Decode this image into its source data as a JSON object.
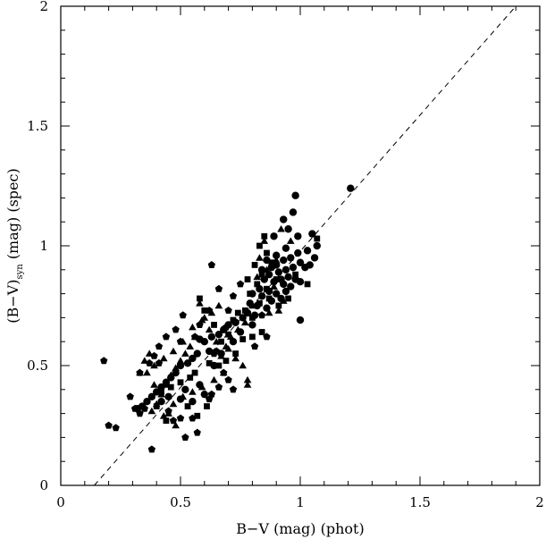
{
  "chart_data": {
    "type": "scatter",
    "title": "",
    "xlabel": "B−V (mag) (phot)",
    "ylabel_main": "(B−V)",
    "ylabel_sub": "syn",
    "ylabel_rest": " (mag) (spec)",
    "xlim": [
      0,
      2
    ],
    "ylim": [
      0,
      2
    ],
    "xticks": [
      "0",
      "0.5",
      "1",
      "1.5",
      "2"
    ],
    "yticks": [
      "0",
      "0.5",
      "1",
      "1.5",
      "2"
    ],
    "xtick_values": [
      0,
      0.5,
      1,
      1.5,
      2
    ],
    "ytick_values": [
      0,
      0.5,
      1,
      1.5,
      2
    ],
    "grid": false,
    "reference_line": {
      "style": "dashed",
      "x": [
        0.14,
        1.9
      ],
      "y": [
        0,
        2
      ]
    },
    "series": [
      {
        "marker": "circle",
        "points": [
          [
            0.98,
            1.21
          ],
          [
            0.97,
            1.14
          ],
          [
            1.21,
            1.24
          ],
          [
            0.93,
            1.11
          ],
          [
            0.95,
            1.07
          ],
          [
            0.89,
            1.04
          ],
          [
            1.05,
            1.05
          ],
          [
            1.07,
            1.0
          ],
          [
            1.03,
            0.98
          ],
          [
            0.99,
            0.97
          ],
          [
            0.96,
            0.95
          ],
          [
            0.93,
            0.94
          ],
          [
            0.9,
            0.92
          ],
          [
            0.88,
            0.91
          ],
          [
            0.94,
            0.9
          ],
          [
            0.97,
            0.91
          ],
          [
            1.0,
            0.93
          ],
          [
            1.02,
            0.91
          ],
          [
            0.91,
            0.89
          ],
          [
            0.87,
            0.88
          ],
          [
            0.92,
            0.86
          ],
          [
            0.95,
            0.87
          ],
          [
            0.98,
            0.86
          ],
          [
            1.0,
            0.85
          ],
          [
            0.85,
            0.86
          ],
          [
            0.89,
            0.85
          ],
          [
            0.93,
            0.84
          ],
          [
            0.96,
            0.83
          ],
          [
            0.83,
            0.82
          ],
          [
            0.87,
            0.81
          ],
          [
            0.9,
            0.8
          ],
          [
            0.94,
            0.81
          ],
          [
            0.8,
            0.8
          ],
          [
            0.84,
            0.79
          ],
          [
            0.88,
            0.77
          ],
          [
            0.92,
            0.78
          ],
          [
            0.79,
            0.76
          ],
          [
            0.82,
            0.75
          ],
          [
            0.86,
            0.74
          ],
          [
            0.78,
            0.72
          ],
          [
            0.81,
            0.71
          ],
          [
            0.76,
            0.7
          ],
          [
            0.73,
            0.68
          ],
          [
            0.7,
            0.67
          ],
          [
            0.68,
            0.65
          ],
          [
            0.66,
            0.63
          ],
          [
            0.63,
            0.62
          ],
          [
            0.6,
            0.6
          ],
          [
            0.58,
            0.61
          ],
          [
            0.62,
            0.56
          ],
          [
            0.57,
            0.55
          ],
          [
            0.55,
            0.53
          ],
          [
            0.53,
            0.51
          ],
          [
            0.5,
            0.5
          ],
          [
            0.48,
            0.47
          ],
          [
            0.46,
            0.45
          ],
          [
            0.44,
            0.43
          ],
          [
            0.42,
            0.41
          ],
          [
            0.4,
            0.39
          ],
          [
            0.38,
            0.37
          ],
          [
            0.36,
            0.35
          ],
          [
            0.34,
            0.33
          ],
          [
            0.32,
            0.32
          ],
          [
            0.42,
            0.35
          ],
          [
            0.45,
            0.37
          ],
          [
            0.5,
            0.36
          ],
          [
            0.55,
            0.35
          ],
          [
            0.6,
            0.38
          ],
          [
            0.52,
            0.4
          ],
          [
            0.58,
            0.42
          ],
          [
            0.64,
            0.5
          ],
          [
            0.67,
            0.55
          ],
          [
            0.72,
            0.6
          ],
          [
            0.75,
            0.64
          ],
          [
            0.8,
            0.67
          ],
          [
            1.0,
            0.69
          ],
          [
            1.06,
            0.95
          ],
          [
            1.04,
            0.92
          ],
          [
            0.99,
            1.04
          ],
          [
            0.94,
            0.99
          ],
          [
            0.9,
            0.96
          ],
          [
            0.86,
            0.94
          ],
          [
            0.84,
            0.9
          ]
        ]
      },
      {
        "marker": "triangle",
        "points": [
          [
            0.92,
            1.07
          ],
          [
            0.85,
            1.02
          ],
          [
            0.96,
            1.02
          ],
          [
            0.83,
            0.95
          ],
          [
            0.9,
            0.94
          ],
          [
            0.86,
            0.9
          ],
          [
            0.82,
            0.87
          ],
          [
            0.89,
            0.83
          ],
          [
            0.93,
            0.77
          ],
          [
            0.91,
            0.73
          ],
          [
            0.87,
            0.72
          ],
          [
            0.8,
            0.75
          ],
          [
            0.77,
            0.68
          ],
          [
            0.74,
            0.65
          ],
          [
            0.71,
            0.62
          ],
          [
            0.69,
            0.58
          ],
          [
            0.67,
            0.54
          ],
          [
            0.65,
            0.6
          ],
          [
            0.62,
            0.65
          ],
          [
            0.6,
            0.7
          ],
          [
            0.58,
            0.76
          ],
          [
            0.56,
            0.62
          ],
          [
            0.54,
            0.58
          ],
          [
            0.52,
            0.55
          ],
          [
            0.5,
            0.52
          ],
          [
            0.48,
            0.49
          ],
          [
            0.46,
            0.46
          ],
          [
            0.44,
            0.42
          ],
          [
            0.42,
            0.38
          ],
          [
            0.4,
            0.34
          ],
          [
            0.38,
            0.31
          ],
          [
            0.36,
            0.47
          ],
          [
            0.39,
            0.5
          ],
          [
            0.43,
            0.53
          ],
          [
            0.47,
            0.56
          ],
          [
            0.51,
            0.6
          ],
          [
            0.55,
            0.66
          ],
          [
            0.59,
            0.69
          ],
          [
            0.63,
            0.72
          ],
          [
            0.66,
            0.75
          ],
          [
            0.7,
            0.57
          ],
          [
            0.73,
            0.53
          ],
          [
            0.76,
            0.5
          ],
          [
            0.78,
            0.44
          ],
          [
            0.78,
            0.42
          ],
          [
            0.68,
            0.47
          ],
          [
            0.64,
            0.44
          ],
          [
            0.59,
            0.41
          ],
          [
            0.55,
            0.39
          ],
          [
            0.51,
            0.37
          ],
          [
            0.47,
            0.34
          ],
          [
            0.43,
            0.29
          ],
          [
            0.48,
            0.25
          ],
          [
            0.39,
            0.42
          ],
          [
            0.37,
            0.55
          ],
          [
            0.35,
            0.52
          ],
          [
            0.33,
            0.47
          ],
          [
            0.45,
            0.3
          ]
        ]
      },
      {
        "marker": "square",
        "points": [
          [
            0.85,
            1.04
          ],
          [
            0.83,
            1.0
          ],
          [
            1.07,
            1.03
          ],
          [
            0.86,
            0.97
          ],
          [
            0.88,
            0.93
          ],
          [
            0.81,
            0.92
          ],
          [
            0.84,
            0.88
          ],
          [
            0.78,
            0.86
          ],
          [
            0.82,
            0.84
          ],
          [
            0.86,
            0.82
          ],
          [
            1.03,
            0.84
          ],
          [
            0.79,
            0.8
          ],
          [
            0.83,
            0.76
          ],
          [
            0.77,
            0.73
          ],
          [
            0.8,
            0.7
          ],
          [
            0.74,
            0.72
          ],
          [
            0.72,
            0.69
          ],
          [
            0.84,
            0.64
          ],
          [
            0.8,
            0.62
          ],
          [
            0.76,
            0.61
          ],
          [
            0.7,
            0.63
          ],
          [
            0.67,
            0.6
          ],
          [
            0.73,
            0.55
          ],
          [
            0.69,
            0.52
          ],
          [
            0.66,
            0.5
          ],
          [
            0.62,
            0.51
          ],
          [
            0.58,
            0.78
          ],
          [
            0.6,
            0.73
          ],
          [
            0.64,
            0.67
          ],
          [
            0.56,
            0.47
          ],
          [
            0.54,
            0.45
          ],
          [
            0.5,
            0.43
          ],
          [
            0.46,
            0.41
          ],
          [
            0.42,
            0.39
          ],
          [
            0.4,
            0.33
          ],
          [
            0.44,
            0.27
          ],
          [
            0.53,
            0.33
          ],
          [
            0.57,
            0.29
          ],
          [
            0.61,
            0.33
          ],
          [
            0.98,
            0.88
          ],
          [
            0.9,
            0.86
          ],
          [
            0.87,
            0.78
          ],
          [
            0.91,
            0.75
          ],
          [
            0.95,
            0.78
          ]
        ]
      },
      {
        "marker": "pentagon",
        "points": [
          [
            0.18,
            0.52
          ],
          [
            0.2,
            0.25
          ],
          [
            0.23,
            0.24
          ],
          [
            0.33,
            0.47
          ],
          [
            0.37,
            0.51
          ],
          [
            0.41,
            0.51
          ],
          [
            0.38,
            0.15
          ],
          [
            0.47,
            0.27
          ],
          [
            0.52,
            0.2
          ],
          [
            0.57,
            0.22
          ],
          [
            0.55,
            0.28
          ],
          [
            0.5,
            0.28
          ],
          [
            0.45,
            0.31
          ],
          [
            0.5,
            0.6
          ],
          [
            0.56,
            0.62
          ],
          [
            0.58,
            0.67
          ],
          [
            0.62,
            0.73
          ],
          [
            0.64,
            0.55
          ],
          [
            0.65,
            0.56
          ],
          [
            0.68,
            0.47
          ],
          [
            0.7,
            0.44
          ],
          [
            0.72,
            0.4
          ],
          [
            0.66,
            0.41
          ],
          [
            0.63,
            0.38
          ],
          [
            0.62,
            0.36
          ],
          [
            0.69,
            0.66
          ],
          [
            0.72,
            0.79
          ],
          [
            0.63,
            0.92
          ],
          [
            0.7,
            0.73
          ],
          [
            0.75,
            0.84
          ],
          [
            0.66,
            0.82
          ],
          [
            0.84,
            0.71
          ],
          [
            0.86,
            0.62
          ],
          [
            0.81,
            0.58
          ],
          [
            0.51,
            0.71
          ],
          [
            0.48,
            0.65
          ],
          [
            0.44,
            0.62
          ],
          [
            0.41,
            0.58
          ],
          [
            0.39,
            0.54
          ],
          [
            0.35,
            0.32
          ],
          [
            0.33,
            0.3
          ],
          [
            0.31,
            0.32
          ],
          [
            0.29,
            0.37
          ]
        ]
      }
    ]
  }
}
